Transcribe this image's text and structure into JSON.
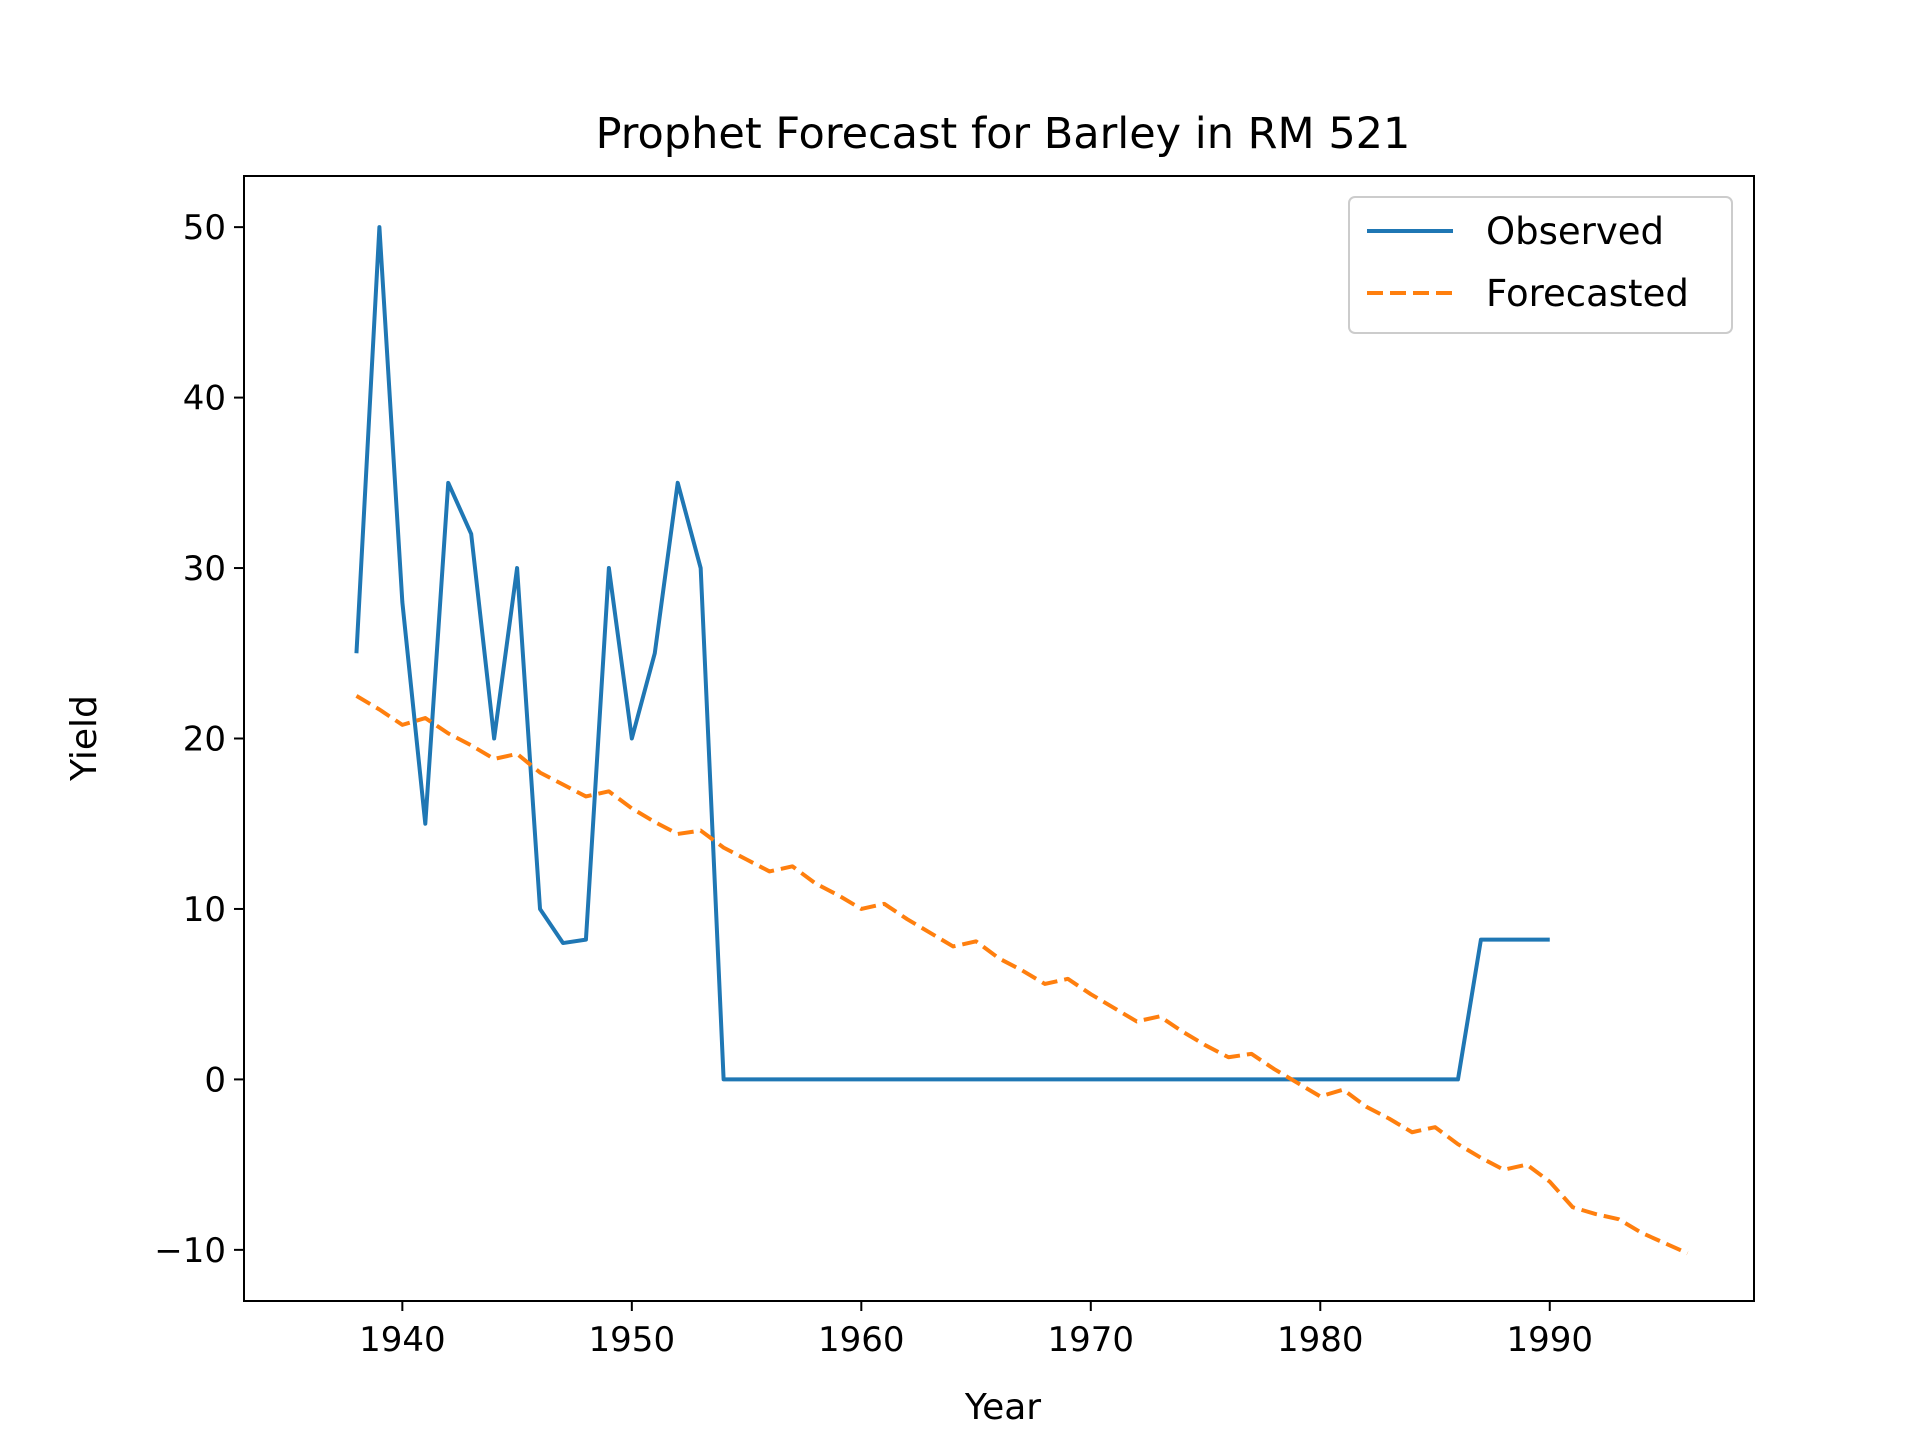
{
  "chart_data": {
    "type": "line",
    "title": "Prophet Forecast for Barley in RM 521",
    "xlabel": "Year",
    "ylabel": "Yield",
    "xlim": [
      1933.1,
      1998.9
    ],
    "ylim": [
      -13,
      53
    ],
    "xticks": [
      1940,
      1950,
      1960,
      1970,
      1980,
      1990
    ],
    "yticks": [
      -10,
      0,
      10,
      20,
      30,
      40,
      50
    ],
    "ytick_labels": [
      "−10",
      "0",
      "10",
      "20",
      "30",
      "40",
      "50"
    ],
    "grid": false,
    "legend_position": "top-right",
    "series": [
      {
        "name": "Observed",
        "color": "#1f77b4",
        "style": "solid",
        "x": [
          1938,
          1939,
          1940,
          1941,
          1942,
          1943,
          1944,
          1945,
          1946,
          1947,
          1948,
          1949,
          1950,
          1951,
          1952,
          1953,
          1954,
          1955,
          1956,
          1957,
          1958,
          1959,
          1960,
          1961,
          1962,
          1963,
          1964,
          1965,
          1966,
          1967,
          1968,
          1969,
          1970,
          1971,
          1972,
          1973,
          1974,
          1975,
          1976,
          1977,
          1978,
          1979,
          1980,
          1981,
          1982,
          1983,
          1984,
          1985,
          1986,
          1987,
          1988,
          1989,
          1990
        ],
        "y": [
          25,
          50,
          28,
          15,
          35,
          32,
          20,
          30,
          10,
          8,
          8.2,
          30,
          20,
          25,
          35,
          30,
          0,
          0,
          0,
          0,
          0,
          0,
          0,
          0,
          0,
          0,
          0,
          0,
          0,
          0,
          0,
          0,
          0,
          0,
          0,
          0,
          0,
          0,
          0,
          0,
          0,
          0,
          0,
          0,
          0,
          0,
          0,
          0,
          0,
          8.2,
          8.2,
          8.2,
          8.2
        ]
      },
      {
        "name": "Forecasted",
        "color": "#ff7f0e",
        "style": "dashed",
        "x": [
          1938,
          1939,
          1940,
          1941,
          1942,
          1943,
          1944,
          1945,
          1946,
          1947,
          1948,
          1949,
          1950,
          1951,
          1952,
          1953,
          1954,
          1955,
          1956,
          1957,
          1958,
          1959,
          1960,
          1961,
          1962,
          1963,
          1964,
          1965,
          1966,
          1967,
          1968,
          1969,
          1970,
          1971,
          1972,
          1973,
          1974,
          1975,
          1976,
          1977,
          1978,
          1979,
          1980,
          1981,
          1982,
          1983,
          1984,
          1985,
          1986,
          1987,
          1988,
          1989,
          1990,
          1991,
          1992,
          1993,
          1994,
          1995,
          1996
        ],
        "y": [
          22.5,
          21.7,
          20.8,
          21.2,
          20.3,
          19.6,
          18.8,
          19.1,
          18.0,
          17.3,
          16.6,
          16.9,
          15.9,
          15.1,
          14.4,
          14.6,
          13.6,
          12.9,
          12.2,
          12.5,
          11.5,
          10.8,
          10.0,
          10.3,
          9.4,
          8.6,
          7.8,
          8.1,
          7.1,
          6.4,
          5.6,
          5.9,
          5.0,
          4.2,
          3.4,
          3.7,
          2.8,
          2.0,
          1.3,
          1.5,
          0.6,
          -0.2,
          -1.0,
          -0.6,
          -1.6,
          -2.3,
          -3.1,
          -2.8,
          -3.8,
          -4.6,
          -5.3,
          -5.0,
          -6.0,
          -7.5,
          -7.9,
          -8.2,
          -9.0,
          -9.6,
          -10.2
        ]
      }
    ]
  }
}
